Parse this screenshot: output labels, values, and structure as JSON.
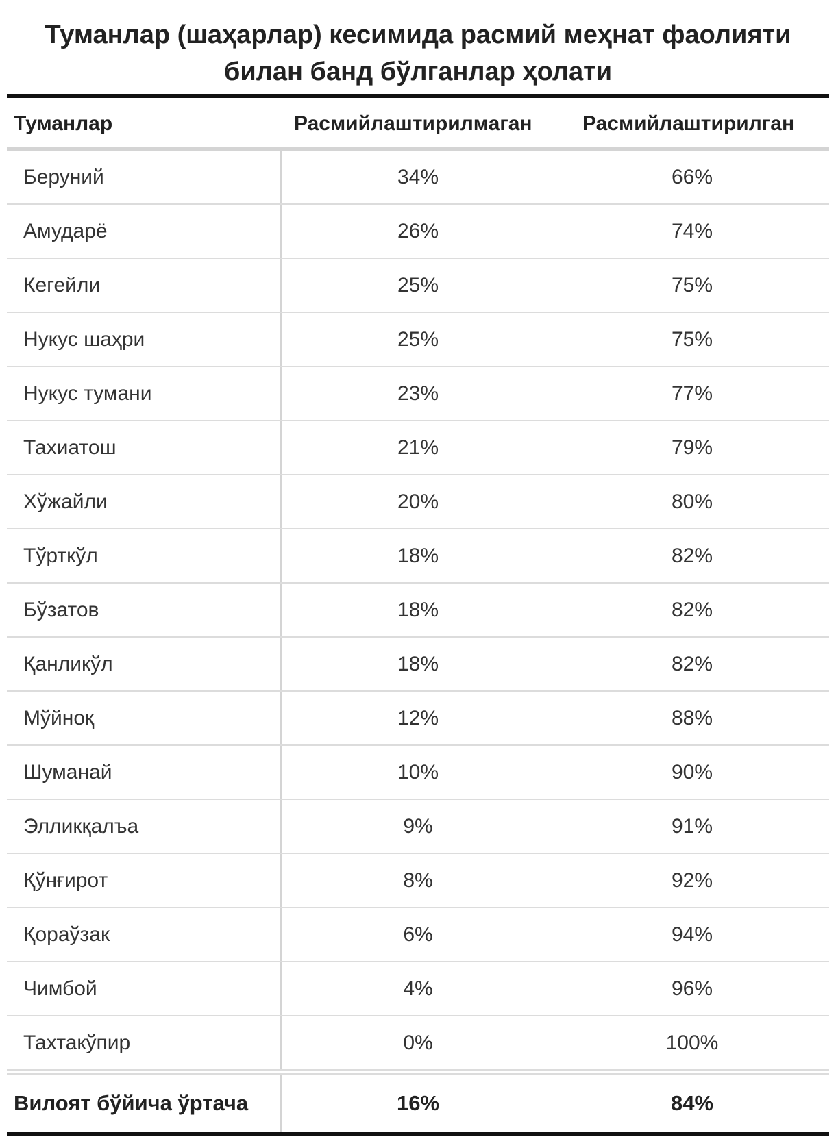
{
  "title": {
    "line1": "Туманлар (шаҳарлар) кесимида расмий меҳнат фаолияти",
    "line2": "билан банд бўлганлар ҳолати"
  },
  "table": {
    "headers": {
      "district": "Туманлар",
      "unformal": "Расмийлаштирилмаган",
      "formal": "Расмийлаштирилган"
    },
    "rows": [
      {
        "district": "Беруний",
        "unformal": "34%",
        "formal": "66%"
      },
      {
        "district": "Амударё",
        "unformal": "26%",
        "formal": "74%"
      },
      {
        "district": "Кегейли",
        "unformal": "25%",
        "formal": "75%"
      },
      {
        "district": "Нукус шаҳри",
        "unformal": "25%",
        "formal": "75%"
      },
      {
        "district": "Нукус тумани",
        "unformal": "23%",
        "formal": "77%"
      },
      {
        "district": "Тахиатош",
        "unformal": "21%",
        "formal": "79%"
      },
      {
        "district": "Хўжайли",
        "unformal": "20%",
        "formal": "80%"
      },
      {
        "district": "Тўрткўл",
        "unformal": "18%",
        "formal": "82%"
      },
      {
        "district": "Бўзатов",
        "unformal": "18%",
        "formal": "82%"
      },
      {
        "district": "Қанликўл",
        "unformal": "18%",
        "formal": "82%"
      },
      {
        "district": "Мўйноқ",
        "unformal": "12%",
        "formal": "88%"
      },
      {
        "district": "Шуманай",
        "unformal": "10%",
        "formal": "90%"
      },
      {
        "district": "Элликқалъа",
        "unformal": "9%",
        "formal": "91%"
      },
      {
        "district": "Қўнғирот",
        "unformal": "8%",
        "formal": "92%"
      },
      {
        "district": "Қораўзак",
        "unformal": "6%",
        "formal": "94%"
      },
      {
        "district": "Чимбой",
        "unformal": "4%",
        "formal": "96%"
      },
      {
        "district": "Тахтакўпир",
        "unformal": "0%",
        "formal": "100%"
      }
    ],
    "total": {
      "label": "Вилоят бўйича ўртача",
      "unformal": "16%",
      "formal": "84%"
    }
  }
}
